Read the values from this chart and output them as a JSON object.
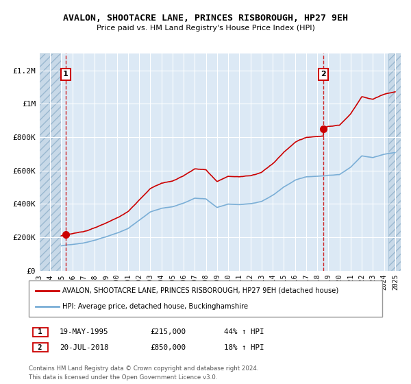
{
  "title": "AVALON, SHOOTACRE LANE, PRINCES RISBOROUGH, HP27 9EH",
  "subtitle": "Price paid vs. HM Land Registry's House Price Index (HPI)",
  "ylim": [
    0,
    1300000
  ],
  "xlim_start": 1993.0,
  "xlim_end": 2025.5,
  "yticks": [
    0,
    200000,
    400000,
    600000,
    800000,
    1000000,
    1200000
  ],
  "ytick_labels": [
    "£0",
    "£200K",
    "£400K",
    "£600K",
    "£800K",
    "£1M",
    "£1.2M"
  ],
  "background_color": "#dce9f5",
  "grid_color": "#ffffff",
  "line1_color": "#cc0000",
  "line2_color": "#7aaed6",
  "marker_color": "#cc0000",
  "vline_color": "#cc0000",
  "hatch_left_end": 1995.0,
  "hatch_right_start": 2024.42,
  "sale1_x": 1995.38,
  "sale1_y": 215000,
  "sale1_label": "1",
  "sale1_date": "19-MAY-1995",
  "sale1_price": "£215,000",
  "sale1_hpi": "44% ↑ HPI",
  "sale2_x": 2018.55,
  "sale2_y": 850000,
  "sale2_label": "2",
  "sale2_date": "20-JUL-2018",
  "sale2_price": "£850,000",
  "sale2_hpi": "18% ↑ HPI",
  "legend_line1": "AVALON, SHOOTACRE LANE, PRINCES RISBOROUGH, HP27 9EH (detached house)",
  "legend_line2": "HPI: Average price, detached house, Buckinghamshire",
  "footer": "Contains HM Land Registry data © Crown copyright and database right 2024.\nThis data is licensed under the Open Government Licence v3.0."
}
